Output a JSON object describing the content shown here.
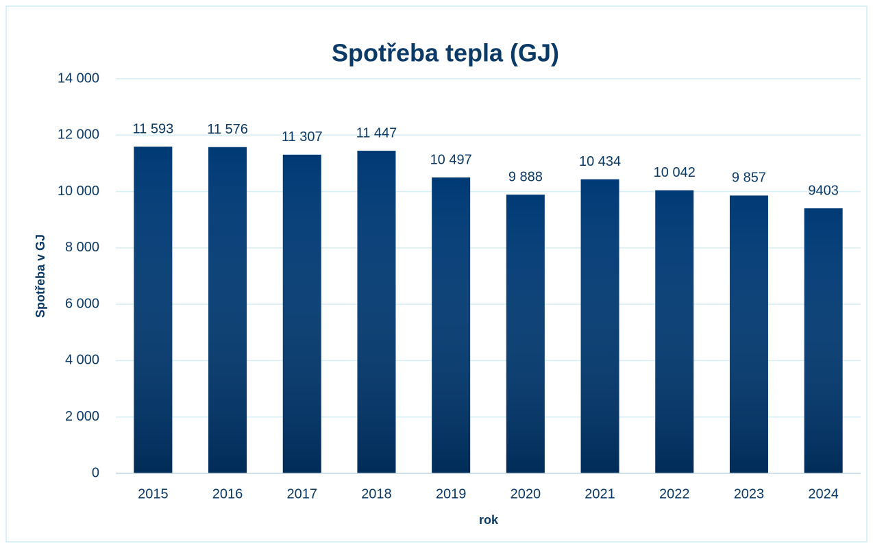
{
  "chart_data": {
    "type": "bar",
    "title": "Spotřeba tepla (GJ)",
    "x_label": "rok",
    "y_label": "Spotřeba v GJ",
    "categories": [
      "2015",
      "2016",
      "2017",
      "2018",
      "2019",
      "2020",
      "2021",
      "2022",
      "2023",
      "2024"
    ],
    "values": [
      11593,
      11576,
      11307,
      11447,
      10497,
      9888,
      10434,
      10042,
      9857,
      9403
    ],
    "value_labels": [
      "11 593",
      "11 576",
      "11 307",
      "11 447",
      "10 497",
      "9 888",
      "10 434",
      "10 042",
      "9 857",
      "9403"
    ],
    "color": "#003a75",
    "ylim": [
      0,
      14000
    ],
    "yticks": [
      0,
      {
        "value": 2000,
        "label": "2 000"
      },
      {
        "value": 4000,
        "label": "4 000"
      },
      {
        "value": 6000,
        "label": "6 000"
      },
      {
        "value": 8000,
        "label": "8 000"
      },
      {
        "value": 10000,
        "label": "10 000"
      },
      {
        "value": 12000,
        "label": "12 000"
      },
      {
        "value": 14000,
        "label": "14 000"
      }
    ],
    "grid": true
  }
}
